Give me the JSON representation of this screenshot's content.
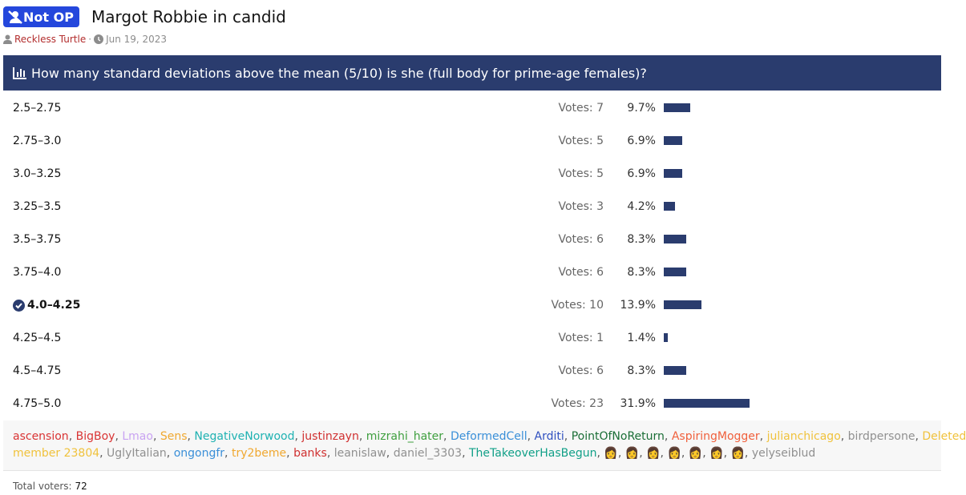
{
  "thread": {
    "badge": "Not OP",
    "title": "Margot Robbie in candid",
    "author": "Reckless Turtle",
    "date": "Jun 19, 2023"
  },
  "poll": {
    "question": "How many standard deviations above the mean (5/10) is she (full body for prime-age females)?",
    "votes_prefix": "Votes:",
    "options": [
      {
        "label": "2.5–2.75",
        "votes": 7,
        "percent": {
          "value": 9.7,
          "label": "9.7%"
        }
      },
      {
        "label": "2.75–3.0",
        "votes": 5,
        "percent": {
          "value": 6.9,
          "label": "6.9%"
        }
      },
      {
        "label": "3.0–3.25",
        "votes": 5,
        "percent": {
          "value": 6.9,
          "label": "6.9%"
        }
      },
      {
        "label": "3.25–3.5",
        "votes": 3,
        "percent": {
          "value": 4.2,
          "label": "4.2%"
        }
      },
      {
        "label": "3.5–3.75",
        "votes": 6,
        "percent": {
          "value": 8.3,
          "label": "8.3%"
        }
      },
      {
        "label": "3.75–4.0",
        "votes": 6,
        "percent": {
          "value": 8.3,
          "label": "8.3%"
        }
      },
      {
        "label": "4.0–4.25",
        "votes": 10,
        "percent": {
          "value": 13.9,
          "label": "13.9%"
        },
        "selected": true
      },
      {
        "label": "4.25–4.5",
        "votes": 1,
        "percent": {
          "value": 1.4,
          "label": "1.4%"
        }
      },
      {
        "label": "4.5–4.75",
        "votes": 6,
        "percent": {
          "value": 8.3,
          "label": "8.3%"
        }
      },
      {
        "label": "4.75–5.0",
        "votes": 23,
        "percent": {
          "value": 31.9,
          "label": "31.9%"
        }
      }
    ],
    "separator": ", ",
    "voters": [
      {
        "name": "ascension",
        "color": "#d93434"
      },
      {
        "name": "BigBoy",
        "color": "#d93434"
      },
      {
        "name": "Lmao",
        "color": "#c9a3f2"
      },
      {
        "name": "Sens",
        "color": "#f0a830"
      },
      {
        "name": "NegativeNorwood",
        "color": "#1fb2b2"
      },
      {
        "name": "justinzayn",
        "color": "#d03030"
      },
      {
        "name": "mizrahi_hater",
        "color": "#3f9f3f"
      },
      {
        "name": "DeformedCell",
        "color": "#3a8fd8"
      },
      {
        "name": "Arditi",
        "color": "#3050c0"
      },
      {
        "name": "PointOfNoReturn",
        "color": "#1a6e36"
      },
      {
        "name": "AspiringMogger",
        "color": "#f0603c"
      },
      {
        "name": "julianchicago",
        "color": "#f0c23c"
      },
      {
        "name": "birdpersone",
        "color": "#909090"
      },
      {
        "name": "Deleted member 23804",
        "color": "#f0c23c"
      },
      {
        "name": "UglyItalian",
        "color": "#909090"
      },
      {
        "name": "ongongfr",
        "color": "#3a8fd8"
      },
      {
        "name": "try2beme",
        "color": "#f0a830"
      },
      {
        "name": "banks",
        "color": "#d03030"
      },
      {
        "name": "leanislaw",
        "color": "#909090"
      },
      {
        "name": "daniel_3303",
        "color": "#909090"
      },
      {
        "name": "TheTakeoverHasBegun",
        "color": "#12a088"
      },
      {
        "name": "👩",
        "color": "#333333"
      },
      {
        "name": "👩",
        "color": "#333333"
      },
      {
        "name": "👩",
        "color": "#333333"
      },
      {
        "name": "👩",
        "color": "#333333"
      },
      {
        "name": "👩",
        "color": "#333333"
      },
      {
        "name": "👩",
        "color": "#333333"
      },
      {
        "name": "👩",
        "color": "#333333"
      },
      {
        "name": "yelyseiblud",
        "color": "#909090"
      }
    ],
    "total_label": "Total voters:",
    "total": 72
  }
}
